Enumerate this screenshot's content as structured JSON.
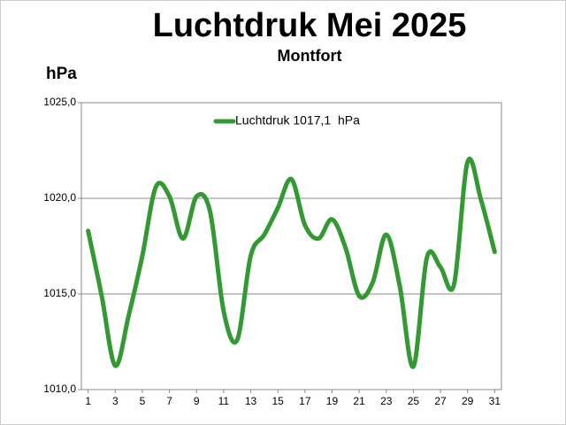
{
  "chart_data": {
    "type": "line",
    "title": "Luchtdruk  Mei 2025",
    "subtitle": "Montfort",
    "y_label": "hPa",
    "x": [
      1,
      2,
      3,
      4,
      5,
      6,
      7,
      8,
      9,
      10,
      11,
      12,
      13,
      14,
      15,
      16,
      17,
      18,
      19,
      20,
      21,
      22,
      23,
      24,
      25,
      26,
      27,
      28,
      29,
      30,
      31
    ],
    "series": [
      {
        "name": "Luchtdruk 1017,1  hPa",
        "color": "#339933",
        "values": [
          1018.3,
          1014.9,
          1011.25,
          1013.9,
          1017.0,
          1020.6,
          1020.1,
          1017.9,
          1020.1,
          1019.3,
          1014.1,
          1012.6,
          1017.0,
          1018.1,
          1019.5,
          1021.0,
          1018.6,
          1017.9,
          1018.9,
          1017.4,
          1014.9,
          1015.6,
          1018.1,
          1015.4,
          1011.2,
          1016.9,
          1016.4,
          1015.5,
          1021.9,
          1019.9,
          1017.2
        ]
      }
    ],
    "xlim": [
      0.5,
      31.5
    ],
    "xticks": [
      1,
      3,
      5,
      7,
      9,
      11,
      13,
      15,
      17,
      19,
      21,
      23,
      25,
      27,
      29,
      31
    ],
    "ylim": [
      1010,
      1025
    ],
    "yticks": [
      {
        "value": 1010,
        "label": "1010,0"
      },
      {
        "value": 1015,
        "label": "1015,0"
      },
      {
        "value": 1020,
        "label": "1020,0"
      },
      {
        "value": 1025,
        "label": "1025,0"
      }
    ],
    "grid": true
  }
}
